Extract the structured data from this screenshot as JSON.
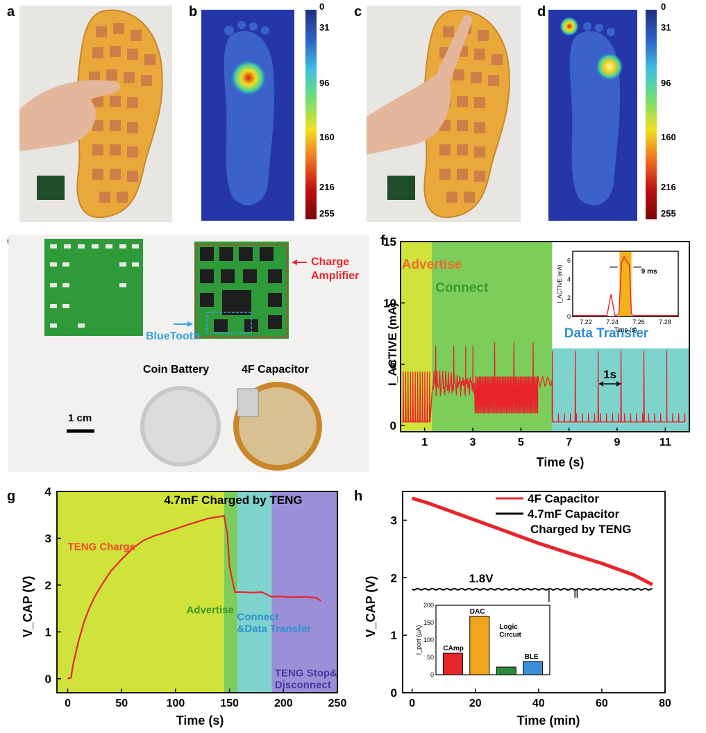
{
  "panels": {
    "a": {
      "letter": "a"
    },
    "b": {
      "letter": "b",
      "colorbar_ticks": [
        "0",
        "31",
        "96",
        "160",
        "216",
        "255"
      ]
    },
    "c": {
      "letter": "c"
    },
    "d": {
      "letter": "d",
      "colorbar_ticks": [
        "0",
        "31",
        "96",
        "160",
        "216",
        "255"
      ]
    },
    "e": {
      "letter": "e",
      "labels": {
        "charge_amplifier": "Charge\nAmplifier",
        "bluetooth": "BlueTooth",
        "coin_battery": "Coin Battery",
        "capacitor": "4F Capacitor",
        "scale": "1 cm"
      },
      "colors": {
        "charge_amplifier": "#e8242b",
        "bluetooth": "#3aa3e0"
      }
    },
    "f": {
      "letter": "f"
    },
    "g": {
      "letter": "g"
    },
    "h": {
      "letter": "h"
    }
  },
  "chart_data": [
    {
      "id": "f",
      "type": "line",
      "xlabel": "Time (s)",
      "ylabel": "I_ACTIVE (mA)",
      "xlim": [
        0,
        12
      ],
      "ylim": [
        -0.5,
        15
      ],
      "xticks": [
        1,
        3,
        5,
        7,
        9,
        11
      ],
      "yticks": [
        0,
        5,
        10,
        15
      ],
      "regions": [
        {
          "name": "Advertise",
          "x": [
            0,
            1.3
          ],
          "color": "#cfe33a",
          "label_color": "#ef6a2c"
        },
        {
          "name": "Connect",
          "x": [
            1.3,
            6.3
          ],
          "color": "#7ccd5a",
          "label_color": "#3a9a2a"
        },
        {
          "name": "Data Transfer",
          "x": [
            6.3,
            12
          ],
          "y_top": 6.3,
          "color": "#7fd3cd",
          "label_color": "#2f8fcf"
        }
      ],
      "annotation": "1s",
      "inset": {
        "xlabel": "Time (s)",
        "ylabel": "I_ACTIVE (mA)",
        "xlim": [
          7.21,
          7.29
        ],
        "ylim": [
          0,
          7
        ],
        "xticks": [
          7.22,
          7.24,
          7.26,
          7.28
        ],
        "yticks": [
          0,
          2,
          4,
          6
        ],
        "annotation": "9 ms",
        "highlight": [
          7.2455,
          7.2545
        ]
      }
    },
    {
      "id": "g",
      "type": "line",
      "title": "4.7mF Charged by TENG",
      "xlabel": "Time (s)",
      "ylabel": "V_CAP (V)",
      "xlim": [
        -10,
        250
      ],
      "ylim": [
        -0.3,
        4
      ],
      "xticks": [
        0,
        50,
        100,
        150,
        200,
        250
      ],
      "yticks": [
        0,
        1,
        2,
        3,
        4
      ],
      "regions": [
        {
          "name": "TENG Charge",
          "x": [
            -10,
            145
          ],
          "color": "#cfe33a",
          "label_color": "#ef4a2c"
        },
        {
          "name": "Advertise",
          "x": [
            145,
            157
          ],
          "color": "#7ccd5a",
          "label_color": "#3a9a2a"
        },
        {
          "name": "Connect\n&Data Transfer",
          "x": [
            157,
            189
          ],
          "color": "#7fd3cd",
          "label_color": "#2f8fcf"
        },
        {
          "name": "TENG Stop&\nDisconnect",
          "x": [
            189,
            250
          ],
          "color": "#9b90d8",
          "label_color": "#4a3aa0"
        }
      ],
      "series": [
        {
          "color": "#e8242b",
          "x": [
            0,
            3,
            5,
            10,
            15,
            20,
            25,
            30,
            40,
            50,
            60,
            70,
            80,
            90,
            100,
            110,
            120,
            130,
            140,
            145,
            148,
            150,
            155,
            160,
            170,
            180,
            189,
            195,
            200,
            210,
            220,
            230,
            235
          ],
          "y": [
            0,
            0.02,
            0.3,
            0.8,
            1.2,
            1.5,
            1.75,
            1.95,
            2.3,
            2.55,
            2.78,
            2.95,
            3.05,
            3.12,
            3.2,
            3.28,
            3.35,
            3.42,
            3.46,
            3.48,
            3.1,
            2.4,
            1.85,
            1.85,
            1.84,
            1.85,
            1.75,
            1.76,
            1.75,
            1.74,
            1.75,
            1.73,
            1.66
          ]
        }
      ]
    },
    {
      "id": "h",
      "type": "line",
      "xlabel": "Time (min)",
      "ylabel": "V_CAP (V)",
      "xlim": [
        -3,
        80
      ],
      "ylim": [
        0,
        3.5
      ],
      "xticks": [
        0,
        20,
        40,
        60,
        80
      ],
      "yticks": [
        0,
        1,
        2,
        3
      ],
      "legend": [
        "4F Capacitor",
        "4.7mF Capacitor",
        "Charged by TENG"
      ],
      "annotation": "1.8V",
      "series": [
        {
          "name": "4F Capacitor",
          "color": "#e8242b",
          "x": [
            0,
            5,
            10,
            20,
            30,
            40,
            50,
            60,
            70,
            76
          ],
          "y": [
            3.38,
            3.3,
            3.2,
            3.0,
            2.8,
            2.6,
            2.42,
            2.25,
            2.05,
            1.88
          ]
        },
        {
          "name": "4.7mF Capacitor",
          "color": "#000000",
          "x": [
            0,
            76
          ],
          "y": [
            1.8,
            1.8
          ]
        }
      ],
      "inset": {
        "type": "bar",
        "ylabel": "I_part (μA)",
        "categories": [
          "CAmp",
          "DAC",
          "Logic\nCircuit",
          "BLE"
        ],
        "values": [
          62,
          168,
          22,
          38
        ],
        "colors": [
          "#e8242b",
          "#f2a41c",
          "#2a8a3a",
          "#3a8fd8"
        ],
        "ylim": [
          0,
          200
        ],
        "yticks": [
          0,
          50,
          100,
          150,
          200
        ]
      }
    }
  ]
}
